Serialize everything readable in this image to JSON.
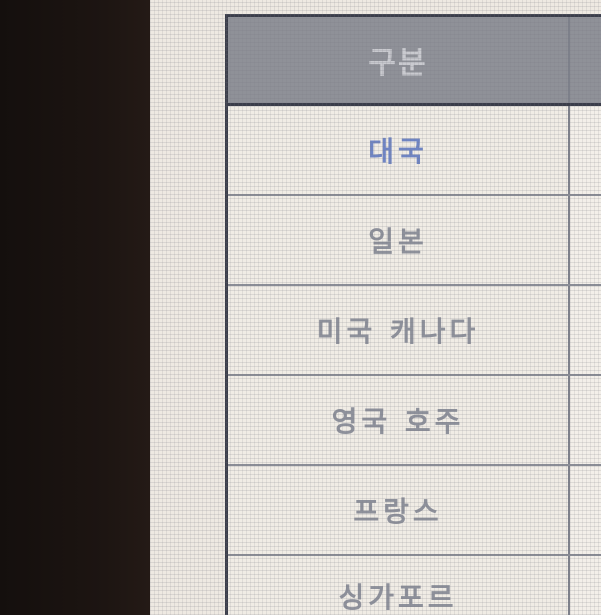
{
  "table": {
    "header": "구분",
    "rows": [
      {
        "label": "대국",
        "color": "#6f85c4"
      },
      {
        "label": "일본"
      },
      {
        "label": "미국  캐나다"
      },
      {
        "label": "영국  호주"
      },
      {
        "label": "프랑스"
      },
      {
        "label": "싱가포르"
      }
    ]
  },
  "colors": {
    "header_bg": "#8f9198",
    "cell_bg": "#f0ece5",
    "border": "#3a3d4a",
    "text": "#8e919b",
    "accent_text": "#6f85c4"
  }
}
